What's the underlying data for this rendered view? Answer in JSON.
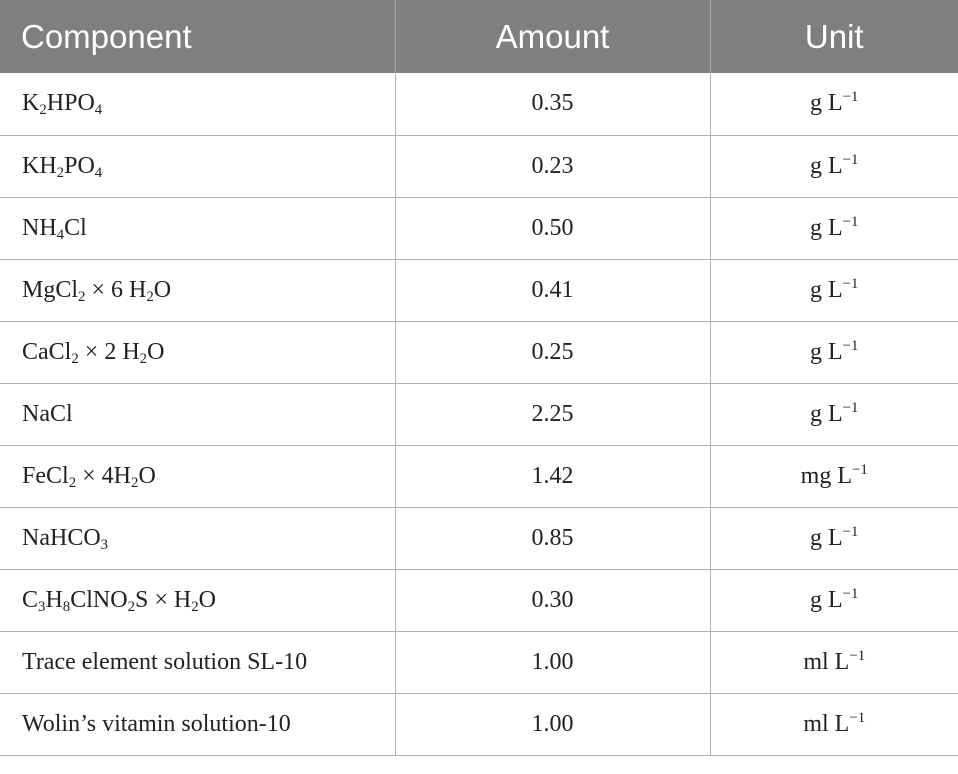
{
  "table": {
    "headers": [
      "Component",
      "Amount",
      "Unit"
    ],
    "rows": [
      {
        "component": [
          [
            "K",
            ""
          ],
          [
            "2",
            "sub"
          ],
          [
            "HPO",
            ""
          ],
          [
            "4",
            "sub"
          ]
        ],
        "amount": "0.35",
        "unit": [
          [
            "g L",
            ""
          ],
          [
            "−1",
            "sup"
          ]
        ]
      },
      {
        "component": [
          [
            "KH",
            ""
          ],
          [
            "2",
            "sub"
          ],
          [
            "PO",
            ""
          ],
          [
            "4",
            "sub"
          ]
        ],
        "amount": "0.23",
        "unit": [
          [
            "g L",
            ""
          ],
          [
            "−1",
            "sup"
          ]
        ]
      },
      {
        "component": [
          [
            "NH",
            ""
          ],
          [
            "4",
            "sub"
          ],
          [
            "Cl",
            ""
          ]
        ],
        "amount": "0.50",
        "unit": [
          [
            "g L",
            ""
          ],
          [
            "−1",
            "sup"
          ]
        ]
      },
      {
        "component": [
          [
            "MgCl",
            ""
          ],
          [
            "2",
            "sub"
          ],
          [
            " × 6 H",
            ""
          ],
          [
            "2",
            "sub"
          ],
          [
            "O",
            ""
          ]
        ],
        "amount": "0.41",
        "unit": [
          [
            "g L",
            ""
          ],
          [
            "−1",
            "sup"
          ]
        ]
      },
      {
        "component": [
          [
            "CaCl",
            ""
          ],
          [
            "2",
            "sub"
          ],
          [
            " × 2 H",
            ""
          ],
          [
            "2",
            "sub"
          ],
          [
            "O",
            ""
          ]
        ],
        "amount": "0.25",
        "unit": [
          [
            "g L",
            ""
          ],
          [
            "−1",
            "sup"
          ]
        ]
      },
      {
        "component": [
          [
            "NaCl",
            ""
          ]
        ],
        "amount": "2.25",
        "unit": [
          [
            "g L",
            ""
          ],
          [
            "−1",
            "sup"
          ]
        ]
      },
      {
        "component": [
          [
            "FeCl",
            ""
          ],
          [
            "2",
            "sub"
          ],
          [
            " × 4H",
            ""
          ],
          [
            "2",
            "sub"
          ],
          [
            "O",
            ""
          ]
        ],
        "amount": "1.42",
        "unit": [
          [
            "mg L",
            ""
          ],
          [
            "−1",
            "sup"
          ]
        ]
      },
      {
        "component": [
          [
            "NaHCO",
            ""
          ],
          [
            "3",
            "sub"
          ]
        ],
        "amount": "0.85",
        "unit": [
          [
            "g L",
            ""
          ],
          [
            "−1",
            "sup"
          ]
        ]
      },
      {
        "component": [
          [
            "C",
            ""
          ],
          [
            "3",
            "sub"
          ],
          [
            "H",
            ""
          ],
          [
            "8",
            "sub"
          ],
          [
            "ClNO",
            ""
          ],
          [
            "2",
            "sub"
          ],
          [
            "S × H",
            ""
          ],
          [
            "2",
            "sub"
          ],
          [
            "O",
            ""
          ]
        ],
        "amount": "0.30",
        "unit": [
          [
            "g L",
            ""
          ],
          [
            "−1",
            "sup"
          ]
        ]
      },
      {
        "component": [
          [
            "Trace element solution SL-10",
            ""
          ]
        ],
        "amount": "1.00",
        "unit": [
          [
            "ml L",
            ""
          ],
          [
            "−1",
            "sup"
          ]
        ]
      },
      {
        "component": [
          [
            "Wolin’s vitamin solution-10",
            ""
          ]
        ],
        "amount": "1.00",
        "unit": [
          [
            "ml L",
            ""
          ],
          [
            "−1",
            "sup"
          ]
        ]
      }
    ]
  }
}
